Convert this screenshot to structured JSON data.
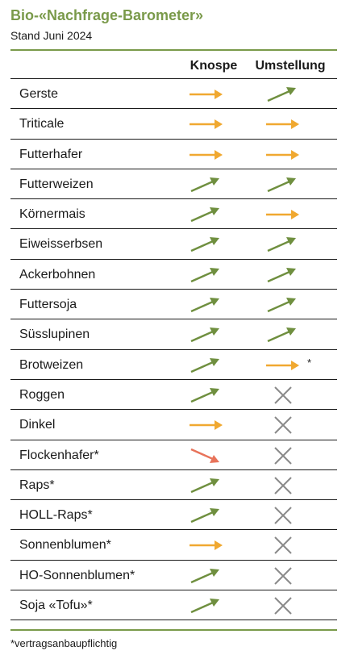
{
  "title": "Bio-«Nachfrage-Barometer»",
  "subtitle": "Stand Juni 2024",
  "columns": {
    "knospe": "Knospe",
    "umstellung": "Umstellung"
  },
  "colors": {
    "up": "#6f8f3f",
    "flat": "#f0a830",
    "down": "#e8735a",
    "none": "#8a8a8a",
    "accent": "#7a9a4a"
  },
  "legend_icons": {
    "up": "arrow-up-right-icon",
    "flat": "arrow-right-icon",
    "down": "arrow-down-right-icon",
    "none": "cross-icon"
  },
  "rows": [
    {
      "label": "Gerste",
      "knospe": "flat",
      "umstellung": "up"
    },
    {
      "label": "Triticale",
      "knospe": "flat",
      "umstellung": "flat"
    },
    {
      "label": "Futterhafer",
      "knospe": "flat",
      "umstellung": "flat"
    },
    {
      "label": "Futterweizen",
      "knospe": "up",
      "umstellung": "up"
    },
    {
      "label": "Körnermais",
      "knospe": "up",
      "umstellung": "flat"
    },
    {
      "label": "Eiweisserbsen",
      "knospe": "up",
      "umstellung": "up"
    },
    {
      "label": "Ackerbohnen",
      "knospe": "up",
      "umstellung": "up"
    },
    {
      "label": "Futtersoja",
      "knospe": "up",
      "umstellung": "up"
    },
    {
      "label": "Süsslupinen",
      "knospe": "up",
      "umstellung": "up"
    },
    {
      "label": "Brotweizen",
      "knospe": "up",
      "umstellung": "flat",
      "umstellung_star": "*"
    },
    {
      "label": "Roggen",
      "knospe": "up",
      "umstellung": "none"
    },
    {
      "label": "Dinkel",
      "knospe": "flat",
      "umstellung": "none"
    },
    {
      "label": "Flockenhafer*",
      "knospe": "down",
      "umstellung": "none"
    },
    {
      "label": "Raps*",
      "knospe": "up",
      "umstellung": "none"
    },
    {
      "label": "HOLL-Raps*",
      "knospe": "up",
      "umstellung": "none"
    },
    {
      "label": "Sonnenblumen*",
      "knospe": "flat",
      "umstellung": "none"
    },
    {
      "label": "HO-Sonnenblumen*",
      "knospe": "up",
      "umstellung": "none"
    },
    {
      "label": "Soja «Tofu»*",
      "knospe": "up",
      "umstellung": "none"
    }
  ],
  "footnote": "*vertragsanbaupflichtig"
}
